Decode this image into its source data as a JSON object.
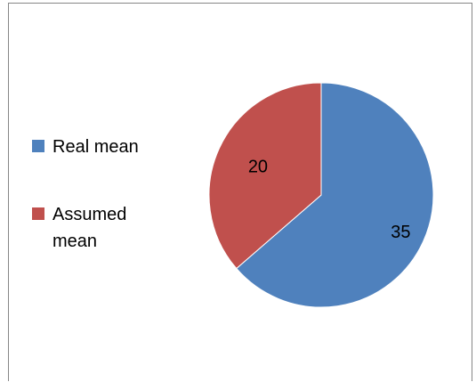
{
  "chart_data": {
    "type": "pie",
    "categories": [
      "Real mean",
      "Assumed mean"
    ],
    "values": [
      35,
      20
    ],
    "data_labels": [
      "35",
      "20"
    ],
    "colors": [
      "#4f81bd",
      "#c0504d"
    ],
    "legend_position": "left",
    "start_angle": "top, clockwise"
  }
}
